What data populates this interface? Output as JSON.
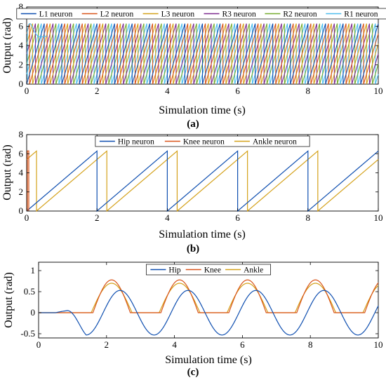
{
  "chart_data": [
    {
      "id": "a",
      "type": "line",
      "panel_label": "(a)",
      "xlabel": "Simulation time (s)",
      "ylabel": "Output (rad)",
      "xlim": [
        0,
        10
      ],
      "ylim": [
        0,
        8
      ],
      "xticks": [
        0,
        2,
        4,
        6,
        8,
        10
      ],
      "yticks": [
        0,
        2,
        4,
        6,
        8
      ],
      "legend_location": "top",
      "wave": "sawtooth",
      "period_s": 0.5,
      "amplitude_rad": 6.28,
      "series": [
        {
          "name": "L1 neuron",
          "color": "#0f4fb0",
          "phase_s": 0.0
        },
        {
          "name": "L2 neuron",
          "color": "#d9541a",
          "phase_s": 0.083
        },
        {
          "name": "L3 neuron",
          "color": "#d4a11a",
          "phase_s": 0.167
        },
        {
          "name": "R3 neuron",
          "color": "#7d2a8f",
          "phase_s": 0.25
        },
        {
          "name": "R2 neuron",
          "color": "#76ac2f",
          "phase_s": 0.333
        },
        {
          "name": "R1 neuron",
          "color": "#4dbeee",
          "phase_s": 0.417
        }
      ]
    },
    {
      "id": "b",
      "type": "line",
      "panel_label": "(b)",
      "xlabel": "Simulation time (s)",
      "ylabel": "Output (rad)",
      "xlim": [
        0,
        10
      ],
      "ylim": [
        0,
        8
      ],
      "xticks": [
        0,
        2,
        4,
        6,
        8,
        10
      ],
      "yticks": [
        0,
        2,
        4,
        6,
        8
      ],
      "legend_location": "top",
      "wave": "sawtooth",
      "period_s": 2.0,
      "amplitude_rad": 6.28,
      "series": [
        {
          "name": "Hip neuron",
          "color": "#0f4fb0",
          "phase_s": 0.0
        },
        {
          "name": "Knee neuron",
          "color": "#d9541a",
          "phase_s": 0.0
        },
        {
          "name": "Ankle neuron",
          "color": "#d4a11a",
          "phase_s": 0.28
        }
      ]
    },
    {
      "id": "c",
      "type": "line",
      "panel_label": "(c)",
      "xlabel": "Simulation time (s)",
      "ylabel": "Output (rad)",
      "xlim": [
        0,
        10
      ],
      "ylim": [
        -0.6,
        1.2
      ],
      "xticks": [
        0,
        2,
        4,
        6,
        8,
        10
      ],
      "yticks": [
        -0.5,
        0,
        0.5,
        1
      ],
      "legend_location": "top",
      "series": [
        {
          "name": "Hip",
          "color": "#0f4fb0",
          "shape": "sine",
          "amplitude": 0.53,
          "period_s": 2.0,
          "peak_times_s": [
            2.4,
            4.4,
            6.4,
            8.4
          ]
        },
        {
          "name": "Knee",
          "color": "#d9541a",
          "shape": "half-sine pulses",
          "peak": 0.78,
          "peak_times_s": [
            2.15,
            4.15,
            6.15,
            8.15
          ]
        },
        {
          "name": "Ankle",
          "color": "#d4a11a",
          "shape": "half-sine pulses",
          "peak": 0.7,
          "peak_times_s": [
            2.15,
            4.15,
            6.15,
            8.15
          ]
        }
      ]
    }
  ]
}
